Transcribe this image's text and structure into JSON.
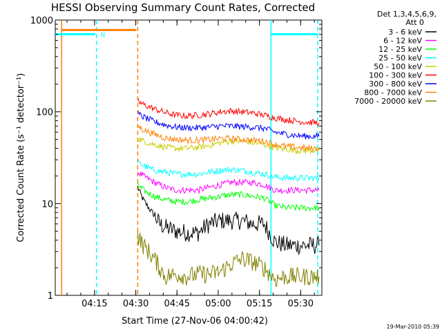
{
  "chart_data": {
    "type": "line",
    "title": "HESSI Observing Summary Count Rates, Corrected",
    "xlabel": "Start Time (27-Nov-06 04:00:42)",
    "ylabel": "Corrected Count Rate (s⁻¹ detector⁻¹)",
    "yscale": "log",
    "ylim": [
      1,
      1000
    ],
    "xlim_minutes": [
      0,
      97
    ],
    "x_ticks": [
      {
        "label": "04:15",
        "minute": 14.3
      },
      {
        "label": "04:30",
        "minute": 29.3
      },
      {
        "label": "04:45",
        "minute": 44.3
      },
      {
        "label": "05:00",
        "minute": 59.3
      },
      {
        "label": "05:15",
        "minute": 74.3
      },
      {
        "label": "05:30",
        "minute": 89.3
      }
    ],
    "y_ticks": [
      {
        "label": "1",
        "value": 1
      },
      {
        "label": "10",
        "value": 10
      },
      {
        "label": "100",
        "value": 100
      },
      {
        "label": "1000",
        "value": 1000
      }
    ],
    "legend_header": [
      "Det 1,3,4,5,6,9,",
      "Att 0"
    ],
    "series": [
      {
        "name": "3 - 6 keV",
        "color": "#000000",
        "x": [
          30,
          32,
          34,
          36,
          38,
          40,
          44,
          48,
          52,
          56,
          60,
          64,
          68,
          72,
          76,
          80,
          84,
          88,
          92,
          96
        ],
        "y": [
          15,
          11,
          9,
          7.5,
          6,
          5.5,
          5,
          4.8,
          4.8,
          6,
          6.5,
          6.5,
          6.5,
          6,
          6,
          3.8,
          3.5,
          3.5,
          3.5,
          3.5
        ]
      },
      {
        "name": "6 - 12 keV",
        "color": "#ff00ff",
        "x": [
          30,
          32,
          36,
          40,
          44,
          48,
          52,
          56,
          60,
          64,
          68,
          72,
          76,
          80,
          84,
          88,
          92,
          96
        ],
        "y": [
          22,
          20,
          17,
          15,
          14,
          14,
          14,
          15,
          16,
          17,
          17,
          17,
          16,
          14,
          14,
          14,
          14,
          14
        ]
      },
      {
        "name": "12 - 25 keV",
        "color": "#00ff00",
        "x": [
          30,
          32,
          36,
          40,
          44,
          48,
          52,
          56,
          60,
          64,
          68,
          72,
          76,
          80,
          84,
          88,
          92,
          96
        ],
        "y": [
          16,
          14,
          12,
          11,
          10.5,
          10.5,
          11,
          11.5,
          12,
          12.5,
          12.5,
          12,
          11.5,
          9.5,
          9,
          9,
          9,
          9
        ]
      },
      {
        "name": "25 - 50 keV",
        "color": "#00ffff",
        "x": [
          30,
          32,
          36,
          40,
          44,
          48,
          52,
          56,
          60,
          64,
          68,
          72,
          76,
          80,
          84,
          88,
          92,
          96
        ],
        "y": [
          28,
          26,
          23,
          22,
          21,
          21,
          21,
          22,
          23,
          23.5,
          23,
          22,
          21,
          19.5,
          19,
          19,
          19,
          19
        ]
      },
      {
        "name": "50 - 100 keV",
        "color": "#cccc00",
        "x": [
          30,
          32,
          36,
          40,
          44,
          48,
          52,
          56,
          60,
          64,
          68,
          72,
          76,
          80,
          84,
          88,
          92,
          96
        ],
        "y": [
          52,
          48,
          44,
          41,
          40,
          40,
          41,
          43,
          46,
          48,
          48,
          46,
          44,
          41,
          39,
          38,
          38,
          38
        ]
      },
      {
        "name": "100 - 300 keV",
        "color": "#ff0000",
        "x": [
          30,
          32,
          36,
          40,
          44,
          48,
          52,
          56,
          60,
          64,
          68,
          72,
          76,
          80,
          84,
          88,
          92,
          96
        ],
        "y": [
          130,
          120,
          108,
          98,
          92,
          90,
          92,
          95,
          100,
          102,
          100,
          97,
          92,
          86,
          82,
          79,
          77,
          76
        ]
      },
      {
        "name": "300 - 800 keV",
        "color": "#0000ff",
        "x": [
          30,
          32,
          36,
          40,
          44,
          48,
          52,
          56,
          60,
          64,
          68,
          72,
          76,
          80,
          84,
          88,
          92,
          96
        ],
        "y": [
          95,
          88,
          78,
          72,
          68,
          67,
          67,
          68,
          70,
          70,
          69,
          68,
          66,
          60,
          57,
          55,
          54,
          54
        ]
      },
      {
        "name": "800 - 7000 keV",
        "color": "#ff8000",
        "x": [
          30,
          32,
          36,
          40,
          44,
          48,
          52,
          56,
          60,
          64,
          68,
          72,
          76,
          80,
          84,
          88,
          92,
          96
        ],
        "y": [
          70,
          64,
          57,
          52,
          50,
          49,
          49,
          50,
          51,
          51,
          50,
          49,
          48,
          44,
          42,
          41,
          40,
          40
        ]
      },
      {
        "name": "7000 - 20000 keV",
        "color": "#808000",
        "x": [
          30,
          32,
          34,
          36,
          38,
          40,
          44,
          48,
          52,
          56,
          60,
          64,
          68,
          72,
          76,
          80,
          84,
          88,
          92,
          96
        ],
        "y": [
          4.5,
          3.5,
          3,
          2.5,
          2,
          1.6,
          1.7,
          1.6,
          1.7,
          1.7,
          1.8,
          2.2,
          2.5,
          2.3,
          2.0,
          1.5,
          1.6,
          1.6,
          1.6,
          1.6
        ]
      }
    ],
    "vertical_markers": [
      {
        "minute": 2.3,
        "color": "#ff8000",
        "style": "solid"
      },
      {
        "minute": 15,
        "color": "#00ffff",
        "style": "dashed"
      },
      {
        "minute": 30,
        "color": "#ff8000",
        "style": "dashed"
      },
      {
        "minute": 78.5,
        "color": "#00ffff",
        "style": "solid"
      },
      {
        "minute": 95.5,
        "color": "#00ffff",
        "style": "dashed"
      }
    ],
    "status_bars": [
      {
        "color": "#00ffff",
        "from": 0,
        "to": 14.5,
        "value": 700
      },
      {
        "color": "#ff8000",
        "from": 2.3,
        "to": 29.5,
        "value": 780
      },
      {
        "color": "#00ffff",
        "from": 78.5,
        "to": 95.5,
        "value": 700
      }
    ],
    "annotations": [
      {
        "text": "N",
        "minute": 16.5,
        "value": 700,
        "color": "#00ffff"
      }
    ]
  },
  "footer_date": "19-Mar-2010 05:39"
}
